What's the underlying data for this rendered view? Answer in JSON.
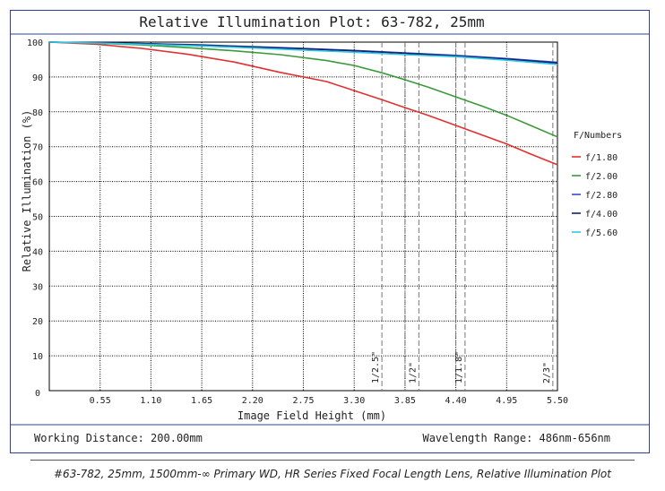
{
  "chart_data": {
    "type": "line",
    "title": "Relative Illumination Plot: 63-782, 25mm",
    "xlabel": "Image Field Height (mm)",
    "ylabel": "Relative Illumination (%)",
    "xlim": [
      0,
      5.5
    ],
    "ylim": [
      0,
      100
    ],
    "x_ticks": [
      0.55,
      1.1,
      1.65,
      2.2,
      2.75,
      3.3,
      3.85,
      4.4,
      4.95,
      5.5
    ],
    "x_tick_labels": [
      "0.55",
      "1.10",
      "1.65",
      "2.20",
      "2.75",
      "3.30",
      "3.85",
      "4.40",
      "4.95",
      "5.50"
    ],
    "y_ticks": [
      10,
      20,
      30,
      40,
      50,
      60,
      70,
      80,
      90,
      100
    ],
    "y_tick_labels": [
      "10",
      "20",
      "30",
      "40",
      "50",
      "60",
      "70",
      "80",
      "90",
      "100"
    ],
    "origin_label": "0",
    "grid": true,
    "legend_title": "F/Numbers",
    "legend_position": "right",
    "series": [
      {
        "name": "f/1.80",
        "color": "#e03030",
        "x": [
          0,
          0.5,
          1.0,
          1.5,
          2.0,
          2.5,
          2.75,
          3.0,
          3.3,
          3.6,
          3.85,
          4.1,
          4.4,
          4.7,
          4.95,
          5.2,
          5.5
        ],
        "y": [
          100,
          99.4,
          98.2,
          96.5,
          94.3,
          91.3,
          90.0,
          88.7,
          86.1,
          83.5,
          81.2,
          79.0,
          76.1,
          73.2,
          70.8,
          68.0,
          64.8
        ]
      },
      {
        "name": "f/2.00",
        "color": "#3a9a3a",
        "x": [
          0,
          0.5,
          1.0,
          1.5,
          2.0,
          2.5,
          3.0,
          3.3,
          3.6,
          3.85,
          4.1,
          4.4,
          4.7,
          4.95,
          5.2,
          5.5
        ],
        "y": [
          100,
          99.7,
          99.2,
          98.4,
          97.5,
          96.4,
          94.7,
          93.3,
          91.2,
          89.2,
          87.1,
          84.3,
          81.5,
          79.0,
          76.2,
          72.8
        ]
      },
      {
        "name": "f/2.80",
        "color": "#3050d0",
        "x": [
          0,
          0.55,
          1.1,
          1.65,
          2.2,
          2.75,
          3.3,
          3.85,
          4.4,
          4.95,
          5.5
        ],
        "y": [
          100,
          99.8,
          99.5,
          99.2,
          98.7,
          98.2,
          97.6,
          96.9,
          96.2,
          95.3,
          94.2
        ]
      },
      {
        "name": "f/4.00",
        "color": "#14206e",
        "x": [
          0,
          0.55,
          1.1,
          1.65,
          2.2,
          2.75,
          3.3,
          3.85,
          4.4,
          4.95,
          5.5
        ],
        "y": [
          100,
          99.8,
          99.5,
          99.1,
          98.6,
          98.1,
          97.5,
          96.8,
          96.0,
          95.1,
          94.0
        ]
      },
      {
        "name": "f/5.60",
        "color": "#30c8e0",
        "x": [
          0,
          0.55,
          1.1,
          1.65,
          2.2,
          2.75,
          3.3,
          3.85,
          4.4,
          4.95,
          5.5
        ],
        "y": [
          100,
          99.7,
          99.3,
          98.9,
          98.3,
          97.7,
          97.1,
          96.4,
          95.8,
          94.8,
          93.6
        ]
      }
    ],
    "markers": [
      {
        "x": 3.6,
        "label": "1/2.5\""
      },
      {
        "x": 4.0,
        "label": "1/2\""
      },
      {
        "x": 4.5,
        "label": "1/1.8\""
      },
      {
        "x": 5.45,
        "label": "2/3\""
      }
    ],
    "marker_x_extra": [
      3.85,
      4.4
    ]
  },
  "footer": {
    "working_distance": "Working Distance: 200.00mm",
    "wavelength_range": "Wavelength Range: 486nm-656nm"
  },
  "caption": "#63-782, 25mm, 1500mm-∞ Primary WD, HR Series Fixed Focal Length Lens, Relative Illumination Plot",
  "colors": {
    "frame": "#2f3ea0",
    "grid": "#000000"
  }
}
